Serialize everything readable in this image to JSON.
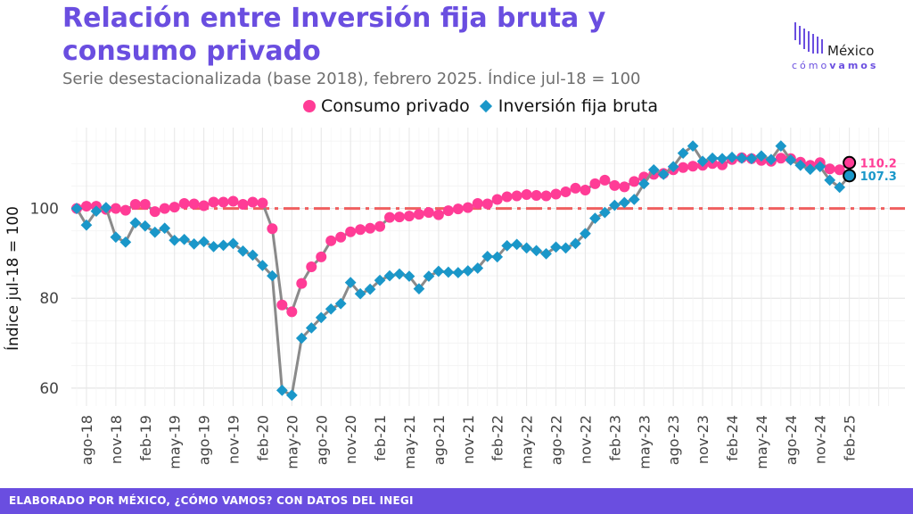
{
  "header": {
    "title": "Relación entre Inversión fija bruta y consumo privado",
    "subtitle": "Serie desestacionalizada (base 2018), febrero 2025. Índice jul-18 = 100"
  },
  "logo": {
    "word": "México",
    "sub_light": "cómo",
    "sub_bold": "vamos"
  },
  "footer": {
    "text": "ELABORADO POR MÉXICO, ¿CÓMO VAMOS? CON DATOS DEL INEGI"
  },
  "chart_data": {
    "type": "line",
    "title": "Relación entre Inversión fija bruta y consumo privado",
    "subtitle": "Serie desestacionalizada (base 2018), febrero 2025. Índice jul-18 = 100",
    "xlabel": "",
    "ylabel": "Índice jul-18 = 100",
    "ylim": [
      56,
      118
    ],
    "yticks": [
      60,
      80,
      100
    ],
    "x_ticks": [
      "ago-18",
      "nov-18",
      "feb-19",
      "may-19",
      "ago-19",
      "nov-19",
      "feb-20",
      "may-20",
      "ago-20",
      "nov-20",
      "feb-21",
      "may-21",
      "ago-21",
      "nov-21",
      "feb-22",
      "may-22",
      "ago-22",
      "nov-22",
      "feb-23",
      "may-23",
      "ago-23",
      "nov-23",
      "feb-24",
      "may-24",
      "ago-24",
      "nov-24",
      "feb-25"
    ],
    "x_start": "jul-18",
    "x_end": "feb-25",
    "reference_line": {
      "value": 100,
      "color": "#f06060",
      "style": "dash-dot"
    },
    "legend_position": "top",
    "grid": true,
    "series": [
      {
        "name": "Consumo privado",
        "marker": "circle",
        "color": "#ff3c96",
        "values": [
          100,
          100.5,
          100.5,
          99.8,
          100,
          99.6,
          100.9,
          100.9,
          99.3,
          100,
          100.3,
          101.1,
          101,
          100.6,
          101.4,
          101.4,
          101.6,
          100.9,
          101.4,
          101.2,
          95.5,
          78.5,
          77,
          83.3,
          87,
          89.2,
          92.8,
          93.6,
          94.8,
          95.3,
          95.6,
          96,
          98,
          98.1,
          98.3,
          98.7,
          99.1,
          98.6,
          99.5,
          99.9,
          100.2,
          101.1,
          101,
          102,
          102.6,
          102.8,
          103.1,
          102.9,
          102.8,
          103.2,
          103.7,
          104.5,
          104.1,
          105.5,
          106.3,
          105.1,
          104.8,
          106,
          107,
          107.6,
          107.8,
          108.6,
          109.1,
          109.4,
          109.6,
          110,
          109.7,
          110.9,
          111.3,
          111.1,
          110.7,
          110.5,
          111.2,
          111.1,
          110.3,
          109.6,
          110.2,
          108.8,
          108.6,
          110.2
        ]
      },
      {
        "name": "Inversión fija bruta",
        "marker": "diamond",
        "color": "#1a97c9",
        "values": [
          100,
          96.3,
          99.4,
          100.2,
          93.6,
          92.5,
          96.8,
          96.1,
          94.7,
          95.6,
          92.9,
          93.1,
          92.1,
          92.6,
          91.5,
          91.8,
          92.2,
          90.5,
          89.6,
          87.3,
          85,
          59.5,
          58.4,
          71.1,
          73.4,
          75.7,
          77.6,
          78.8,
          83.5,
          81,
          82,
          84,
          85,
          85.4,
          84.9,
          82.1,
          84.9,
          86,
          85.8,
          85.7,
          86.1,
          86.7,
          89.3,
          89.2,
          91.7,
          92,
          91.2,
          90.6,
          89.9,
          91.4,
          91.2,
          92.2,
          94.4,
          97.8,
          99.1,
          100.7,
          101.3,
          102,
          105.5,
          108.6,
          107.6,
          109.3,
          112.3,
          113.9,
          110.5,
          111.2,
          111.1,
          111.4,
          111.2,
          111.1,
          111.7,
          110.9,
          113.9,
          110.8,
          109.6,
          108.7,
          109.3,
          106.3,
          104.7,
          107.3
        ]
      }
    ],
    "end_labels": [
      {
        "series": "Consumo privado",
        "value": "110.2"
      },
      {
        "series": "Inversión fija bruta",
        "value": "107.3"
      }
    ]
  }
}
